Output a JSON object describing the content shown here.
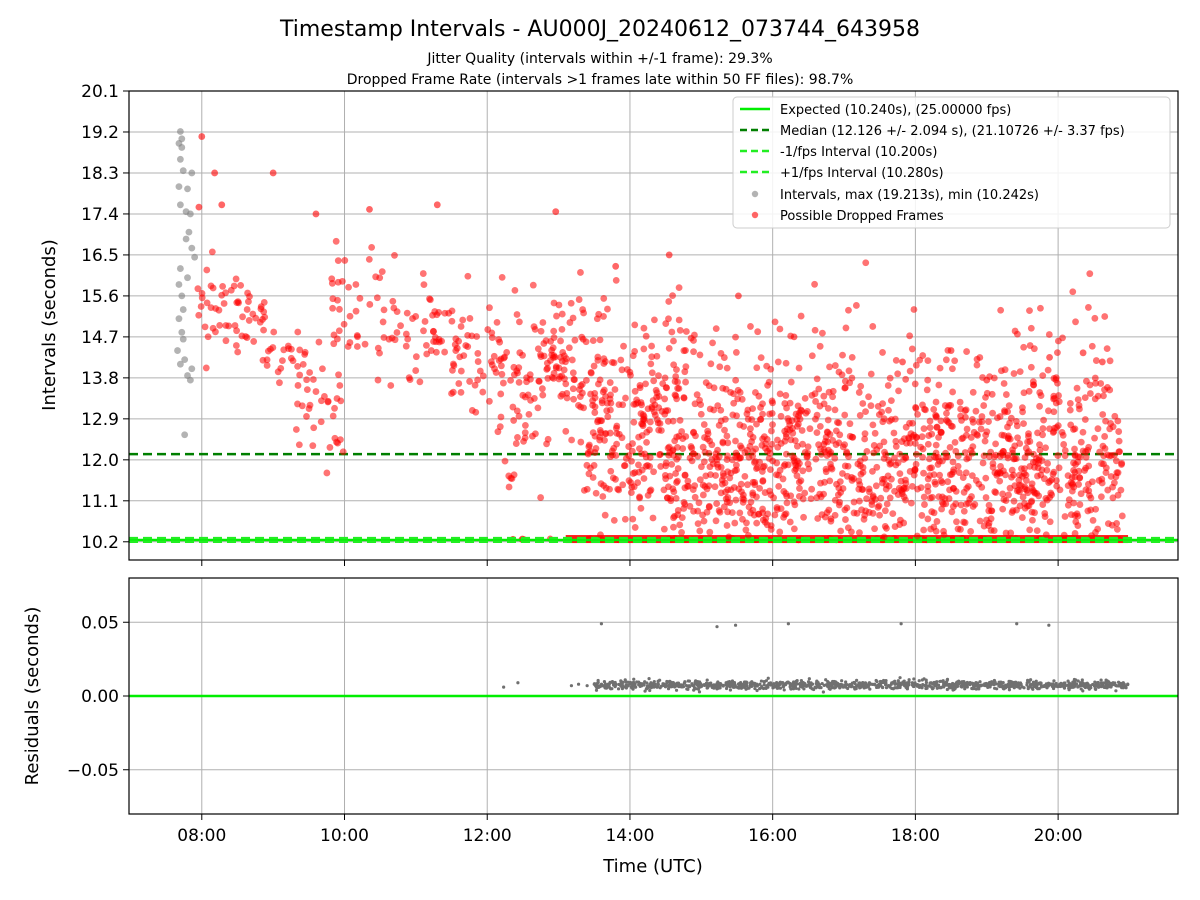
{
  "figure": {
    "title": "Timestamp Intervals - AU000J_20240612_073744_643958",
    "subtitle_1": "Jitter Quality (intervals within +/-1 frame): 29.3%",
    "subtitle_2": "Dropped Frame Rate (intervals >1 frames late within 50 FF files): 98.7%"
  },
  "chart_data": [
    {
      "type": "scatter",
      "title": "Timestamp Intervals - AU000J_20240612_073744_643958",
      "xlabel": "",
      "ylabel": "Intervals (seconds)",
      "x_unit": "hours UTC",
      "xlim": [
        6.98,
        21.68
      ],
      "ylim": [
        9.8,
        20.1
      ],
      "yticks": [
        "10.2",
        "11.1",
        "12.0",
        "12.9",
        "13.8",
        "14.7",
        "15.6",
        "16.5",
        "17.4",
        "18.3",
        "19.2",
        "20.1"
      ],
      "grid": "y",
      "legend": "top-right",
      "reference_lines": [
        {
          "name": "Expected (10.240s), (25.00000 fps)",
          "y": 10.24,
          "style": "solid",
          "color": "#00ee00"
        },
        {
          "name": "Median (12.126 +/- 2.094 s), (21.10726 +/- 3.37 fps)",
          "y": 12.126,
          "style": "dashed",
          "color": "#007f00"
        },
        {
          "name": "-1/fps Interval (10.200s)",
          "y": 10.2,
          "style": "dashed",
          "color": "#22ee22"
        },
        {
          "name": "+1/fps Interval (10.280s)",
          "y": 10.28,
          "style": "dashed",
          "color": "#22ee22"
        }
      ],
      "series": [
        {
          "name": "Intervals, max (19.213s), min (10.242s)",
          "color": "#808080",
          "points": [
            [
              7.7,
              19.21
            ],
            [
              7.72,
              19.05
            ],
            [
              7.68,
              18.95
            ],
            [
              7.72,
              18.86
            ],
            [
              7.7,
              18.6
            ],
            [
              7.74,
              18.35
            ],
            [
              7.86,
              18.3
            ],
            [
              7.68,
              18.0
            ],
            [
              7.8,
              17.95
            ],
            [
              7.7,
              17.6
            ],
            [
              7.78,
              17.45
            ],
            [
              7.84,
              17.4
            ],
            [
              7.82,
              17.0
            ],
            [
              7.86,
              16.65
            ],
            [
              7.9,
              16.45
            ],
            [
              7.7,
              16.2
            ],
            [
              7.8,
              16.0
            ],
            [
              7.68,
              15.85
            ],
            [
              7.72,
              15.6
            ],
            [
              7.74,
              15.3
            ],
            [
              7.68,
              15.1
            ],
            [
              7.72,
              14.8
            ],
            [
              7.74,
              14.65
            ],
            [
              7.66,
              14.4
            ],
            [
              7.76,
              14.2
            ],
            [
              7.7,
              14.1
            ],
            [
              7.86,
              14.0
            ],
            [
              7.8,
              13.85
            ],
            [
              7.84,
              13.75
            ],
            [
              7.76,
              12.55
            ],
            [
              7.78,
              16.85
            ]
          ],
          "min_y": 10.242,
          "max_y": 19.213
        },
        {
          "name": "Possible Dropped Frames",
          "color": "#ff0000",
          "note": "dense scatter of several thousand intervals; approximated by trend bands below",
          "trend_bands": [
            {
              "x": [
                7.85,
                9.3
              ],
              "centers": [
                15.8,
                14.4
              ],
              "spread": 0.5
            },
            {
              "x": [
                9.3,
                10.0
              ],
              "centers": [
                14.0,
                12.4
              ],
              "spread": 0.7
            },
            {
              "x": [
                9.8,
                11.6
              ],
              "centers": [
                15.5,
                14.6
              ],
              "spread": 0.6
            },
            {
              "x": [
                11.5,
                13.0
              ],
              "centers": [
                14.5,
                13.8
              ],
              "spread": 0.8
            },
            {
              "x": [
                12.3,
                13.4
              ],
              "centers": [
                12.1,
                15.4
              ],
              "spread": 0.5
            },
            {
              "x": [
                13.0,
                14.8
              ],
              "centers": [
                13.8,
                13.8
              ],
              "spread": 0.6
            },
            {
              "x": [
                13.4,
                20.9
              ],
              "centers": [
                12.0,
                12.0
              ],
              "spread": 0.55
            },
            {
              "x": [
                13.3,
                20.9
              ],
              "centers": [
                12.8,
                12.8
              ],
              "spread": 1.1
            },
            {
              "x": [
                14.5,
                20.9
              ],
              "centers": [
                11.1,
                11.1
              ],
              "spread": 0.45
            }
          ],
          "floor_band": {
            "x": [
              13.1,
              20.98
            ],
            "y": 10.26,
            "sparse_from": 12.2
          },
          "high_outliers": [
            [
              8.0,
              19.1
            ],
            [
              8.18,
              18.3
            ],
            [
              9.0,
              18.3
            ],
            [
              9.6,
              17.4
            ],
            [
              10.35,
              17.5
            ],
            [
              11.3,
              17.6
            ],
            [
              12.96,
              17.45
            ],
            [
              13.8,
              16.25
            ],
            [
              14.55,
              16.5
            ],
            [
              15.52,
              15.6
            ],
            [
              16.3,
              14.7
            ],
            [
              17.82,
              14.15
            ],
            [
              18.5,
              14.4
            ],
            [
              19.0,
              13.75
            ],
            [
              19.88,
              14.25
            ],
            [
              20.35,
              14.35
            ],
            [
              20.62,
              14.15
            ],
            [
              7.96,
              17.55
            ],
            [
              8.28,
              17.6
            ]
          ]
        }
      ]
    },
    {
      "type": "scatter",
      "title": "",
      "xlabel": "Time (UTC)",
      "ylabel": "Residuals (seconds)",
      "xlim": [
        6.98,
        21.68
      ],
      "ylim": [
        -0.08,
        0.08
      ],
      "xticks": [
        "08:00",
        "10:00",
        "12:00",
        "14:00",
        "16:00",
        "18:00",
        "20:00"
      ],
      "yticks": [
        "−0.05",
        "0.00",
        "0.05"
      ],
      "grid": "both",
      "zero_line_color": "#00ee00",
      "series": [
        {
          "name": "",
          "color": "#707070",
          "points": [
            [
              12.23,
              0.006
            ],
            [
              12.43,
              0.009
            ],
            [
              13.18,
              0.007
            ],
            [
              13.28,
              0.008
            ],
            [
              13.4,
              0.007
            ],
            [
              13.5,
              0.008
            ],
            [
              13.6,
              0.049
            ],
            [
              15.22,
              0.047
            ],
            [
              15.48,
              0.048
            ],
            [
              16.22,
              0.049
            ],
            [
              17.8,
              0.049
            ],
            [
              19.42,
              0.049
            ],
            [
              19.87,
              0.048
            ]
          ],
          "band": {
            "x": [
              13.5,
              20.98
            ],
            "y_center": 0.0075,
            "spread": 0.003
          }
        }
      ]
    }
  ]
}
